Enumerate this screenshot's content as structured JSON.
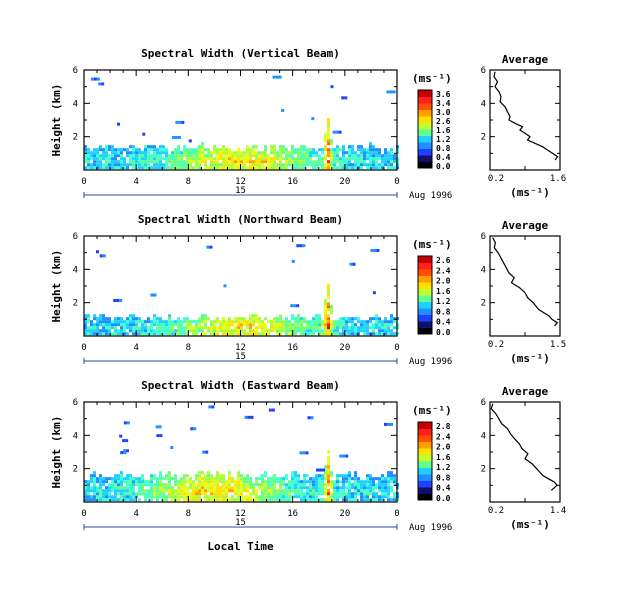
{
  "chart_data": [
    {
      "type": "heatmap",
      "title": "Spectral Width (Vertical Beam)",
      "ylabel": "Height (km)",
      "xlim": [
        0,
        24
      ],
      "ylim": [
        0,
        6
      ],
      "x_ticks": [
        "0",
        "4",
        "8",
        "12",
        "16",
        "20",
        "0"
      ],
      "y_ticks": [
        "2",
        "4",
        "6"
      ],
      "date_labels": [
        "15",
        "Aug 1996"
      ],
      "colorbar": {
        "unit": "(ms⁻¹)",
        "ticks": [
          "3.6",
          "3.4",
          "3.0",
          "2.6",
          "1.6",
          "1.2",
          "0.8",
          "0.4",
          "0.0"
        ]
      },
      "data_profile": {
        "base_height_km": 1.5,
        "spike_time_h": 18.6,
        "spike_top_km": 3.0,
        "spread_h": 12,
        "echo_density": 0.35
      },
      "avg_profile": {
        "title": "Average",
        "xlabel": "(ms⁻¹)",
        "xlim": [
          0.2,
          1.6
        ],
        "x_ticks": [
          "0.2",
          "1.6"
        ],
        "y_ticks": [
          "2",
          "4",
          "6"
        ],
        "x": [
          0.3,
          0.28,
          0.35,
          0.3,
          0.38,
          0.42,
          0.4,
          0.5,
          0.55,
          0.6,
          0.58,
          0.7,
          0.85,
          0.8,
          0.9,
          1.0,
          0.95,
          1.1,
          1.25,
          1.35,
          1.45,
          1.55,
          1.5
        ],
        "y": [
          5.9,
          5.6,
          5.3,
          5.0,
          4.7,
          4.4,
          4.1,
          3.8,
          3.5,
          3.2,
          3.0,
          2.8,
          2.6,
          2.4,
          2.2,
          2.0,
          1.8,
          1.6,
          1.4,
          1.2,
          1.0,
          0.8,
          0.6
        ]
      }
    },
    {
      "type": "heatmap",
      "title": "Spectral Width (Northward Beam)",
      "ylabel": "Height (km)",
      "xlim": [
        0,
        24
      ],
      "ylim": [
        0,
        6
      ],
      "x_ticks": [
        "0",
        "4",
        "8",
        "12",
        "16",
        "20",
        "0"
      ],
      "y_ticks": [
        "2",
        "4",
        "6"
      ],
      "date_labels": [
        "15",
        "Aug 1996"
      ],
      "colorbar": {
        "unit": "(ms⁻¹)",
        "ticks": [
          "2.6",
          "2.4",
          "2.0",
          "1.6",
          "1.2",
          "0.8",
          "0.4",
          "0.0"
        ]
      },
      "data_profile": {
        "base_height_km": 1.2,
        "spike_time_h": 18.6,
        "spike_top_km": 3.0,
        "spread_h": 12,
        "echo_density": 0.3
      },
      "avg_profile": {
        "title": "Average",
        "xlabel": "(ms⁻¹)",
        "xlim": [
          0.2,
          1.5
        ],
        "x_ticks": [
          "0.2",
          "1.5"
        ],
        "y_ticks": [
          "2",
          "4",
          "6"
        ],
        "x": [
          0.25,
          0.3,
          0.28,
          0.35,
          0.4,
          0.45,
          0.5,
          0.55,
          0.65,
          0.6,
          0.75,
          0.85,
          0.9,
          1.0,
          1.05,
          1.1,
          1.2,
          1.3,
          1.35,
          1.45,
          1.4
        ],
        "y": [
          5.9,
          5.6,
          5.3,
          5.0,
          4.7,
          4.4,
          4.1,
          3.8,
          3.5,
          3.2,
          2.9,
          2.6,
          2.3,
          2.0,
          1.8,
          1.6,
          1.4,
          1.2,
          1.0,
          0.8,
          0.6
        ]
      }
    },
    {
      "type": "heatmap",
      "title": "Spectral Width (Eastward Beam)",
      "ylabel": "Height (km)",
      "xlim": [
        0,
        24
      ],
      "ylim": [
        0,
        6
      ],
      "x_ticks": [
        "0",
        "4",
        "8",
        "12",
        "16",
        "20",
        "0"
      ],
      "y_ticks": [
        "2",
        "4",
        "6"
      ],
      "date_labels": [
        "15",
        "Aug 1996"
      ],
      "xlabel": "Local Time",
      "colorbar": {
        "unit": "(ms⁻¹)",
        "ticks": [
          "2.8",
          "2.4",
          "2.0",
          "1.6",
          "1.2",
          "0.8",
          "0.4",
          "0.0"
        ]
      },
      "data_profile": {
        "base_height_km": 1.8,
        "spike_time_h": 18.6,
        "spike_top_km": 3.0,
        "spread_h": 10,
        "echo_density": 0.45
      },
      "avg_profile": {
        "title": "Average",
        "xlabel": "(ms⁻¹)",
        "xlim": [
          0.2,
          1.4
        ],
        "x_ticks": [
          "0.2",
          "1.4"
        ],
        "y_ticks": [
          "2",
          "4",
          "6"
        ],
        "x": [
          0.25,
          0.22,
          0.3,
          0.35,
          0.4,
          0.5,
          0.55,
          0.62,
          0.7,
          0.75,
          0.85,
          0.8,
          0.92,
          1.0,
          1.05,
          1.1,
          1.2,
          1.3,
          1.35,
          1.25
        ],
        "y": [
          5.9,
          5.6,
          5.3,
          5.0,
          4.7,
          4.4,
          4.1,
          3.8,
          3.5,
          3.2,
          2.9,
          2.6,
          2.3,
          2.0,
          1.8,
          1.6,
          1.4,
          1.2,
          1.0,
          0.7
        ]
      }
    }
  ]
}
